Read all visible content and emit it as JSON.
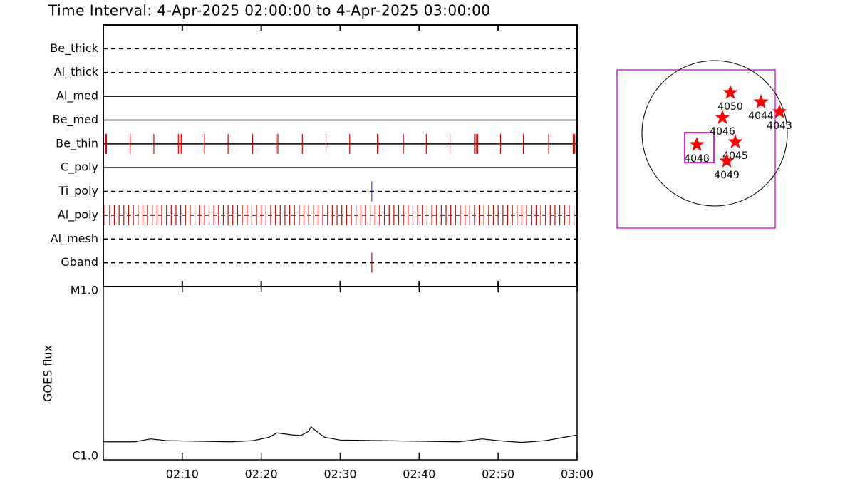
{
  "chart_data": [
    {
      "type": "event",
      "title": "Time Interval:  4-Apr-2025 02:00:00 to  4-Apr-2025 03:00:00",
      "categories": [
        "Be_thick",
        "Al_thick",
        "Al_med",
        "Be_med",
        "Be_thin",
        "C_poly",
        "Ti_poly",
        "Al_poly",
        "Al_mesh",
        "Gband"
      ],
      "line_styles": [
        "dashed",
        "dashed",
        "solid",
        "solid",
        "solid",
        "solid",
        "dashed",
        "dashed",
        "dashed",
        "dashed"
      ],
      "event_colors": [
        "#e00000",
        "#e00000",
        "#e00000",
        "#e00000",
        "#e00000",
        "#e00000",
        "#2020a0",
        "#e00000",
        "#e00000",
        "#e00000"
      ],
      "events": [
        [],
        [],
        [],
        [],
        [
          0.3,
          0.4,
          3.4,
          6.4,
          9.5,
          9.7,
          9.9,
          12.8,
          15.8,
          18.9,
          21.9,
          22.1,
          25.2,
          28.2,
          31.2,
          34.7,
          34.8,
          38.0,
          40.9,
          43.9,
          47.0,
          47.2,
          47.4,
          50.3,
          53.2,
          56.4,
          59.5,
          59.7
        ],
        [],
        [
          34.0
        ],
        [
          0.2,
          0.8,
          1.4,
          2.0,
          2.6,
          3.2,
          3.8,
          4.4,
          5.0,
          5.6,
          6.2,
          6.8,
          7.4,
          8.0,
          8.6,
          9.2,
          9.8,
          10.4,
          11.0,
          11.6,
          12.2,
          12.8,
          13.4,
          14.0,
          14.6,
          15.2,
          15.8,
          16.4,
          17.0,
          17.6,
          18.2,
          18.8,
          19.4,
          20.0,
          20.6,
          21.2,
          21.8,
          22.4,
          23.0,
          23.6,
          24.2,
          24.8,
          25.4,
          26.0,
          26.6,
          27.2,
          27.8,
          28.4,
          29.0,
          29.6,
          30.2,
          30.8,
          31.4,
          32.0,
          32.6,
          33.2,
          33.8,
          34.4,
          35.0,
          35.6,
          36.2,
          36.8,
          37.4,
          38.0,
          38.6,
          39.2,
          39.8,
          40.4,
          41.0,
          41.6,
          42.2,
          42.8,
          43.4,
          44.0,
          44.6,
          45.2,
          45.8,
          46.4,
          47.0,
          47.6,
          48.2,
          48.8,
          49.4,
          50.0,
          50.6,
          51.2,
          51.8,
          52.4,
          53.0,
          53.6,
          54.2,
          54.8,
          55.4,
          56.0,
          56.6,
          57.2,
          57.8,
          58.4,
          59.0,
          59.6
        ],
        [],
        [
          34.0
        ]
      ],
      "xlim": [
        0,
        60
      ]
    },
    {
      "type": "line",
      "y_label": "GOES flux",
      "x": [
        0,
        4,
        6,
        8,
        12,
        16,
        19,
        21,
        22,
        24,
        25,
        26,
        26.3,
        27,
        28,
        30,
        35,
        40,
        45,
        48,
        50,
        53,
        56,
        58,
        60
      ],
      "values": [
        1.27e-06,
        1.27e-06,
        1.32e-06,
        1.29e-06,
        1.28e-06,
        1.27e-06,
        1.29e-06,
        1.35e-06,
        1.43e-06,
        1.39e-06,
        1.38e-06,
        1.46e-06,
        1.55e-06,
        1.46e-06,
        1.35e-06,
        1.3e-06,
        1.29e-06,
        1.28e-06,
        1.27e-06,
        1.32e-06,
        1.29e-06,
        1.26e-06,
        1.29e-06,
        1.34e-06,
        1.39e-06
      ],
      "color": "#000000",
      "log_scale": true,
      "xlim": [
        0,
        60
      ],
      "xticks": [
        {
          "value": 10,
          "label": "02:10"
        },
        {
          "value": 20,
          "label": "02:20"
        },
        {
          "value": 30,
          "label": "02:30"
        },
        {
          "value": 40,
          "label": "02:40"
        },
        {
          "value": 50,
          "label": "02:50"
        },
        {
          "value": 60,
          "label": "03:00"
        }
      ],
      "ylim": [
        1e-06,
        1e-05
      ],
      "yticks": [
        {
          "value": 1e-06,
          "label": "C1.0"
        },
        {
          "value": 1e-05,
          "label": "M1.0"
        }
      ]
    }
  ],
  "map": {
    "regions": [
      "4050",
      "4044",
      "4043",
      "4046",
      "4048",
      "4045",
      "4049"
    ]
  }
}
